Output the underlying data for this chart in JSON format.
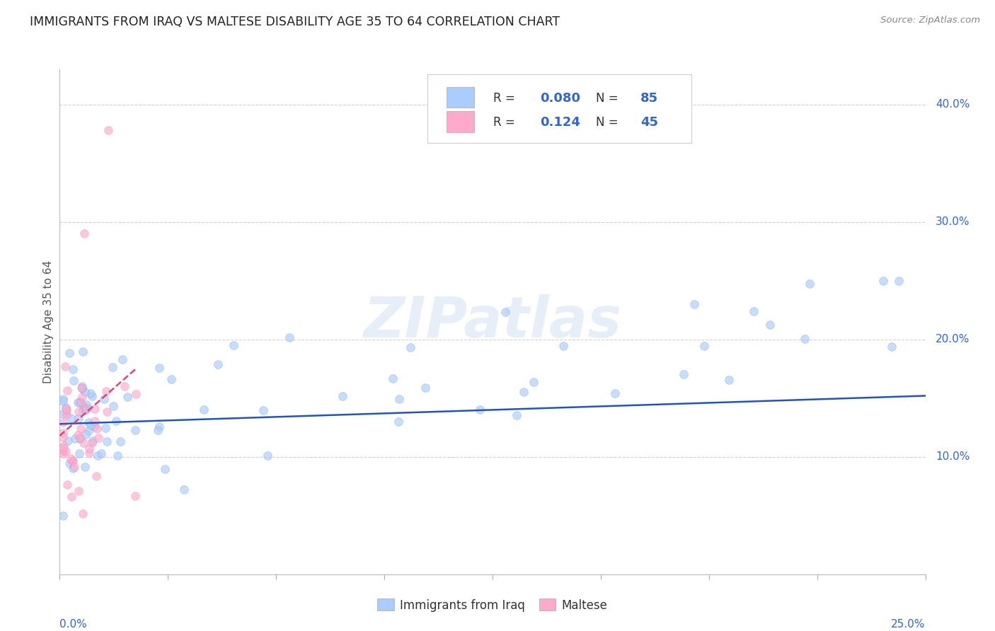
{
  "title": "IMMIGRANTS FROM IRAQ VS MALTESE DISABILITY AGE 35 TO 64 CORRELATION CHART",
  "source": "Source: ZipAtlas.com",
  "ylabel": "Disability Age 35 to 64",
  "ylabel_right_ticks": [
    "10.0%",
    "20.0%",
    "30.0%",
    "40.0%"
  ],
  "ylabel_right_vals": [
    0.1,
    0.2,
    0.3,
    0.4
  ],
  "xlim": [
    0.0,
    0.25
  ],
  "ylim": [
    0.0,
    0.43
  ],
  "legend_blue_R": "0.080",
  "legend_blue_N": "85",
  "legend_pink_R": "0.124",
  "legend_pink_N": "45",
  "legend_label_blue": "Immigrants from Iraq",
  "legend_label_pink": "Maltese",
  "watermark_text": "ZIPatlas",
  "blue_line_x": [
    0.0,
    0.25
  ],
  "blue_line_y": [
    0.128,
    0.152
  ],
  "pink_line_x": [
    0.0,
    0.022
  ],
  "pink_line_y": [
    0.118,
    0.175
  ],
  "grid_color": "#cccccc",
  "scatter_size": 70,
  "scatter_alpha": 0.65,
  "blue_color": "#aaccff",
  "pink_color": "#ffaacc",
  "blue_edge_color": "#7799dd",
  "pink_edge_color": "#dd88aa",
  "blue_line_color": "#2255bb",
  "pink_line_color": "#dd4477",
  "title_color": "#222222",
  "axis_label_color": "#3366cc",
  "watermark_color": "#c8daf0",
  "watermark_alpha": 0.45,
  "source_color": "#888888",
  "ylabel_color": "#555555"
}
